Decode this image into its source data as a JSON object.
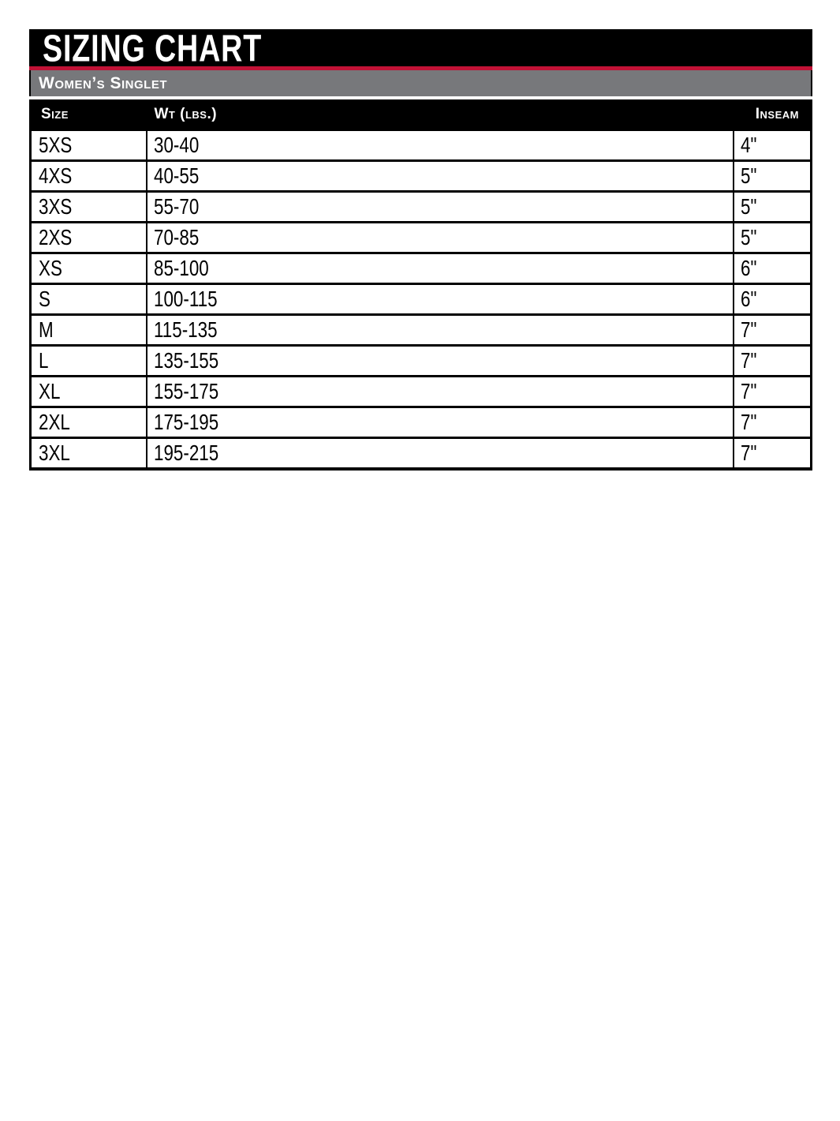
{
  "title_bar": {
    "title": "SIZING CHART"
  },
  "subtitle_bar": {
    "label": "Women’s Singlet"
  },
  "sizing_table": {
    "columns": [
      {
        "key": "size",
        "label": "Size"
      },
      {
        "key": "wt",
        "label": "Wt (lbs.)"
      },
      {
        "key": "inseam",
        "label": "Inseam"
      }
    ],
    "rows": [
      {
        "size": "5XS",
        "wt": "30-40",
        "inseam": "4\""
      },
      {
        "size": "4XS",
        "wt": "40-55",
        "inseam": "5\""
      },
      {
        "size": "3XS",
        "wt": "55-70",
        "inseam": "5\""
      },
      {
        "size": "2XS",
        "wt": "70-85",
        "inseam": "5\""
      },
      {
        "size": "XS",
        "wt": "85-100",
        "inseam": "6\""
      },
      {
        "size": "S",
        "wt": "100-115",
        "inseam": "6\""
      },
      {
        "size": "M",
        "wt": "115-135",
        "inseam": "7\""
      },
      {
        "size": "L",
        "wt": "135-155",
        "inseam": "7\""
      },
      {
        "size": "XL",
        "wt": "155-175",
        "inseam": "7\""
      },
      {
        "size": "2XL",
        "wt": "175-195",
        "inseam": "7\""
      },
      {
        "size": "3XL",
        "wt": "195-215",
        "inseam": "7\""
      }
    ]
  },
  "colors": {
    "bar_black": "#000000",
    "accent_red": "#c11236",
    "bar_gray": "#77787b",
    "text_white": "#ffffff"
  }
}
